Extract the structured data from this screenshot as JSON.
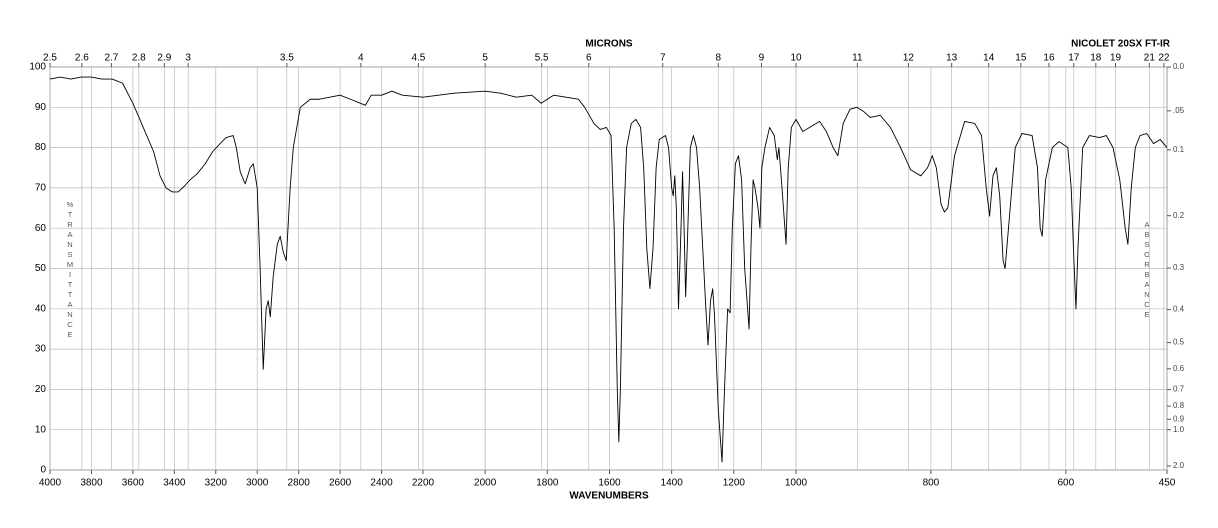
{
  "chart_data": {
    "type": "line",
    "title": "NICOLET 20SX FT-IR",
    "xlabel": "WAVENUMBERS",
    "x2label": "MICRONS",
    "ylabel": "%TRANSMITTANCE",
    "y2label": "ABSORBANCE",
    "color": "#000000",
    "grid": true,
    "xlim": [
      4000,
      450
    ],
    "ylim": [
      0,
      100
    ],
    "xticks": [
      4000,
      3800,
      3600,
      3400,
      3200,
      3000,
      2800,
      2600,
      2400,
      2200,
      2000,
      1800,
      1600,
      1400,
      1200,
      1000,
      800,
      600,
      450
    ],
    "x2ticks": [
      2.5,
      2.6,
      2.7,
      2.8,
      2.9,
      3,
      3.5,
      4,
      4.5,
      5,
      5.5,
      6,
      7,
      8,
      9,
      10,
      11,
      12,
      13,
      14,
      15,
      16,
      17,
      18,
      19,
      21,
      22
    ],
    "yticks": [
      0,
      10,
      20,
      30,
      40,
      50,
      60,
      70,
      80,
      90,
      100
    ],
    "y2ticks": [
      {
        "value": 0,
        "label": "0.0"
      },
      {
        "value": 0.05,
        "label": ".05"
      },
      0.1,
      0.2,
      0.3,
      0.4,
      0.5,
      0.6,
      0.7,
      0.8,
      0.9,
      {
        "value": 1,
        "label": "1.0"
      },
      {
        "value": 2,
        "label": "2.0"
      }
    ],
    "x": [
      4000,
      3950,
      3900,
      3850,
      3800,
      3750,
      3700,
      3650,
      3600,
      3550,
      3500,
      3469,
      3440,
      3411,
      3382,
      3350,
      3324,
      3290,
      3251,
      3215,
      3179,
      3150,
      3116,
      3101,
      3082,
      3058,
      3034,
      3019,
      3000,
      2986,
      2971,
      2957,
      2947,
      2937,
      2923,
      2903,
      2889,
      2874,
      2860,
      2841,
      2826,
      2792,
      2744,
      2700,
      2600,
      2550,
      2478,
      2450,
      2400,
      2350,
      2300,
      2200,
      2100,
      2000,
      1950,
      1900,
      1850,
      1820,
      1800,
      1780,
      1700,
      1680,
      1650,
      1630,
      1610,
      1595,
      1585,
      1575,
      1570,
      1565,
      1555,
      1545,
      1530,
      1515,
      1500,
      1490,
      1480,
      1470,
      1460,
      1450,
      1440,
      1420,
      1410,
      1400,
      1395,
      1390,
      1385,
      1378,
      1370,
      1365,
      1360,
      1355,
      1350,
      1340,
      1330,
      1320,
      1310,
      1300,
      1290,
      1283,
      1275,
      1268,
      1262,
      1250,
      1238,
      1230,
      1220,
      1212,
      1205,
      1195,
      1185,
      1175,
      1165,
      1151,
      1145,
      1138,
      1132,
      1122,
      1116,
      1110,
      1100,
      1085,
      1070,
      1060,
      1055,
      1045,
      1032,
      1025,
      1015,
      1000,
      990,
      980,
      965,
      955,
      945,
      938,
      930,
      920,
      910,
      900,
      890,
      875,
      860,
      845,
      830,
      815,
      805,
      798,
      792,
      785,
      780,
      775,
      765,
      750,
      735,
      725,
      718,
      713,
      708,
      703,
      698,
      693,
      690,
      685,
      675,
      665,
      650,
      642,
      638,
      635,
      630,
      620,
      610,
      597,
      592,
      588,
      585,
      582,
      575,
      565,
      550,
      540,
      530,
      520,
      512,
      508,
      503,
      497,
      490,
      480,
      470,
      460,
      450
    ],
    "values": [
      97,
      97.5,
      97,
      97.5,
      97.5,
      97,
      97,
      96,
      91,
      85,
      79,
      73,
      70,
      69,
      69,
      70.5,
      72,
      73.5,
      76,
      79,
      81,
      82.5,
      83,
      80,
      74,
      71,
      75,
      76,
      70,
      50,
      25,
      40,
      42,
      38,
      48,
      56,
      58,
      54,
      52,
      70,
      80,
      90,
      92,
      92,
      93,
      92,
      90.5,
      93,
      93,
      94,
      93,
      92.5,
      93.5,
      94,
      93.5,
      92.5,
      93,
      91,
      92,
      93,
      92,
      90,
      86,
      84.5,
      85,
      83,
      60,
      20,
      7,
      20,
      60,
      80,
      86,
      87,
      85,
      75,
      55,
      45,
      55,
      75,
      82,
      83,
      80,
      70,
      68,
      73,
      65,
      40,
      60,
      74,
      60,
      43,
      55,
      80,
      83,
      80,
      70,
      55,
      40,
      31,
      42,
      45,
      38,
      15,
      2,
      20,
      40,
      39,
      60,
      76,
      78,
      72,
      50,
      35,
      55,
      72,
      70,
      65,
      60,
      75,
      80,
      85,
      83,
      77,
      80,
      70,
      56,
      75,
      85,
      87,
      84,
      85,
      86.5,
      84,
      80,
      78,
      86,
      89.5,
      90,
      89,
      87.5,
      88,
      85,
      80,
      74.5,
      73,
      75,
      78,
      75,
      66,
      64,
      65,
      78,
      86.5,
      86,
      83,
      70,
      63,
      73,
      75,
      68,
      52,
      50,
      60,
      80,
      83.5,
      83,
      75,
      60,
      58,
      72,
      80,
      81.5,
      80,
      70,
      52,
      40,
      55,
      80,
      83,
      82.5,
      83,
      80,
      72,
      60,
      56,
      70,
      80,
      83,
      83.5,
      81,
      82,
      80
    ]
  }
}
